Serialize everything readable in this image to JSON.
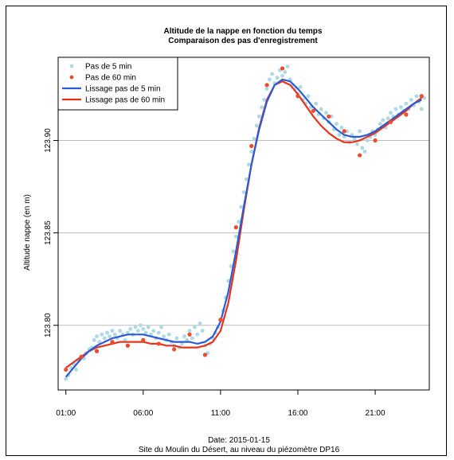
{
  "chart_data": {
    "type": "scatter",
    "title": "Altitude de la nappe en fonction du temps",
    "subtitle": "Comparaison des pas d'enregistrement",
    "xlabel": "Date: 2015-01-15",
    "xlabel2": "Site du Moulin du Désert, au niveau du piézomètre DP16",
    "ylabel": "Altitude nappe (en m)",
    "xlim": [
      0.5,
      24.5
    ],
    "ylim": [
      123.765,
      123.945
    ],
    "x_ticks": [
      1,
      6,
      11,
      16,
      21
    ],
    "x_tick_labels": [
      "01:00",
      "06:00",
      "11:00",
      "16:00",
      "21:00"
    ],
    "y_ticks": [
      123.8,
      123.85,
      123.9
    ],
    "y_tick_labels": [
      "123.80",
      "123.85",
      "123.90"
    ],
    "grid": "horizontal",
    "legend_position": "top-left",
    "series": [
      {
        "name": "Pas de 5 min",
        "kind": "points",
        "color": "#add8e6",
        "x": [
          1.0,
          1.17,
          1.33,
          1.5,
          1.67,
          1.83,
          2.0,
          2.17,
          2.33,
          2.5,
          2.67,
          2.83,
          3.0,
          3.17,
          3.33,
          3.5,
          3.67,
          3.83,
          4.0,
          4.17,
          4.33,
          4.5,
          4.67,
          4.83,
          5.0,
          5.17,
          5.33,
          5.5,
          5.67,
          5.83,
          6.0,
          6.17,
          6.33,
          6.5,
          6.67,
          6.83,
          7.0,
          7.17,
          7.33,
          7.5,
          7.67,
          7.83,
          8.0,
          8.17,
          8.33,
          8.5,
          8.67,
          8.83,
          9.0,
          9.17,
          9.33,
          9.5,
          9.67,
          9.83,
          10.0,
          10.17,
          10.33,
          10.5,
          10.67,
          10.83,
          11.0,
          11.17,
          11.33,
          11.5,
          11.67,
          11.83,
          12.0,
          12.17,
          12.33,
          12.5,
          12.67,
          12.83,
          13.0,
          13.17,
          13.33,
          13.5,
          13.67,
          13.83,
          14.0,
          14.17,
          14.33,
          14.5,
          14.67,
          14.83,
          15.0,
          15.17,
          15.33,
          15.5,
          15.67,
          15.83,
          16.0,
          16.17,
          16.33,
          16.5,
          16.67,
          16.83,
          17.0,
          17.17,
          17.33,
          17.5,
          17.67,
          17.83,
          18.0,
          18.17,
          18.33,
          18.5,
          18.67,
          18.83,
          19.0,
          19.17,
          19.33,
          19.5,
          19.67,
          19.83,
          20.0,
          20.17,
          20.33,
          20.5,
          20.67,
          20.83,
          21.0,
          21.17,
          21.33,
          21.5,
          21.67,
          21.83,
          22.0,
          22.17,
          22.33,
          22.5,
          22.67,
          22.83,
          23.0,
          23.17,
          23.33,
          23.5,
          23.67,
          23.83,
          24.0,
          24.17
        ],
        "y": [
          123.771,
          123.773,
          123.777,
          123.779,
          123.776,
          123.781,
          123.783,
          123.782,
          123.785,
          123.787,
          123.788,
          123.792,
          123.794,
          123.791,
          123.795,
          123.793,
          123.796,
          123.794,
          123.797,
          123.795,
          123.793,
          123.797,
          123.795,
          123.792,
          123.796,
          123.798,
          123.795,
          123.799,
          123.797,
          123.8,
          123.798,
          123.796,
          123.799,
          123.795,
          123.797,
          123.793,
          123.796,
          123.799,
          123.794,
          123.792,
          123.795,
          123.791,
          123.789,
          123.793,
          123.788,
          123.79,
          123.794,
          123.792,
          123.797,
          123.793,
          123.799,
          123.795,
          123.801,
          123.797,
          123.789,
          123.785,
          123.79,
          123.793,
          123.796,
          123.799,
          123.803,
          123.808,
          123.815,
          123.824,
          123.832,
          123.84,
          123.848,
          123.856,
          123.864,
          123.872,
          123.879,
          123.887,
          123.894,
          123.901,
          123.908,
          123.913,
          123.918,
          123.922,
          123.928,
          123.933,
          123.936,
          123.931,
          123.934,
          123.938,
          123.935,
          123.937,
          123.94,
          123.933,
          123.93,
          123.928,
          123.925,
          123.929,
          123.922,
          123.92,
          123.924,
          123.918,
          123.916,
          123.92,
          123.914,
          123.917,
          123.912,
          123.915,
          123.91,
          123.913,
          123.906,
          123.909,
          123.903,
          123.907,
          123.902,
          123.905,
          123.899,
          123.903,
          123.901,
          123.898,
          123.905,
          123.896,
          123.894,
          123.9,
          123.902,
          123.905,
          123.903,
          123.906,
          123.909,
          123.911,
          123.907,
          123.912,
          123.915,
          123.913,
          123.917,
          123.914,
          123.918,
          123.916,
          123.92,
          123.917,
          123.922,
          123.919,
          123.924,
          123.921,
          123.917,
          123.923
        ]
      },
      {
        "name": "Pas de 60 min",
        "kind": "points",
        "color": "#f04a2a",
        "x": [
          1,
          2,
          3,
          4,
          5,
          6,
          7,
          8,
          9,
          10,
          11,
          12,
          13,
          14,
          15,
          16,
          17,
          18,
          19,
          20,
          21,
          22,
          23,
          24
        ],
        "y": [
          123.776,
          123.783,
          123.786,
          123.791,
          123.789,
          123.792,
          123.79,
          123.787,
          123.795,
          123.784,
          123.803,
          123.853,
          123.897,
          123.93,
          123.939,
          123.924,
          123.916,
          123.913,
          123.905,
          123.892,
          123.9,
          123.91,
          123.914,
          123.924
        ]
      },
      {
        "name": "Lissage pas de 5 min",
        "kind": "line",
        "color": "#2a5bd7",
        "x": [
          1,
          1.5,
          2,
          2.5,
          3,
          3.5,
          4,
          4.5,
          5,
          5.5,
          6,
          6.5,
          7,
          7.5,
          8,
          8.5,
          9,
          9.5,
          10,
          10.5,
          11,
          11.5,
          12,
          12.5,
          13,
          13.5,
          14,
          14.5,
          15,
          15.5,
          16,
          16.5,
          17,
          17.5,
          18,
          18.5,
          19,
          19.5,
          20,
          20.5,
          21,
          21.5,
          22,
          22.5,
          23,
          23.5,
          24
        ],
        "y": [
          123.772,
          123.777,
          123.782,
          123.786,
          123.789,
          123.791,
          123.793,
          123.794,
          123.795,
          123.795,
          123.795,
          123.794,
          123.793,
          123.792,
          123.791,
          123.791,
          123.791,
          123.79,
          123.791,
          123.794,
          123.802,
          123.818,
          123.84,
          123.864,
          123.887,
          123.906,
          123.921,
          123.93,
          123.933,
          123.932,
          123.928,
          123.923,
          123.918,
          123.914,
          123.91,
          123.906,
          123.903,
          123.902,
          123.902,
          123.903,
          123.905,
          123.908,
          123.911,
          123.914,
          123.917,
          123.92,
          123.922
        ]
      },
      {
        "name": "Lissage pas de 60 min",
        "kind": "line",
        "color": "#e8321c",
        "x": [
          1,
          1.5,
          2,
          2.5,
          3,
          3.5,
          4,
          4.5,
          5,
          5.5,
          6,
          6.5,
          7,
          7.5,
          8,
          8.5,
          9,
          9.5,
          10,
          10.5,
          11,
          11.5,
          12,
          12.5,
          13,
          13.5,
          14,
          14.5,
          15,
          15.5,
          16,
          16.5,
          17,
          17.5,
          18,
          18.5,
          19,
          19.5,
          20,
          20.5,
          21,
          21.5,
          22,
          22.5,
          23,
          23.5,
          24
        ],
        "y": [
          123.777,
          123.78,
          123.783,
          123.786,
          123.788,
          123.789,
          123.79,
          123.791,
          123.791,
          123.791,
          123.791,
          123.79,
          123.79,
          123.789,
          123.789,
          123.788,
          123.788,
          123.788,
          123.789,
          123.791,
          123.797,
          123.812,
          123.835,
          123.862,
          123.887,
          123.907,
          123.922,
          123.93,
          123.932,
          123.93,
          123.925,
          123.919,
          123.913,
          123.908,
          123.904,
          123.901,
          123.899,
          123.899,
          123.9,
          123.902,
          123.904,
          123.907,
          123.91,
          123.913,
          123.916,
          123.92,
          123.923
        ]
      }
    ]
  }
}
